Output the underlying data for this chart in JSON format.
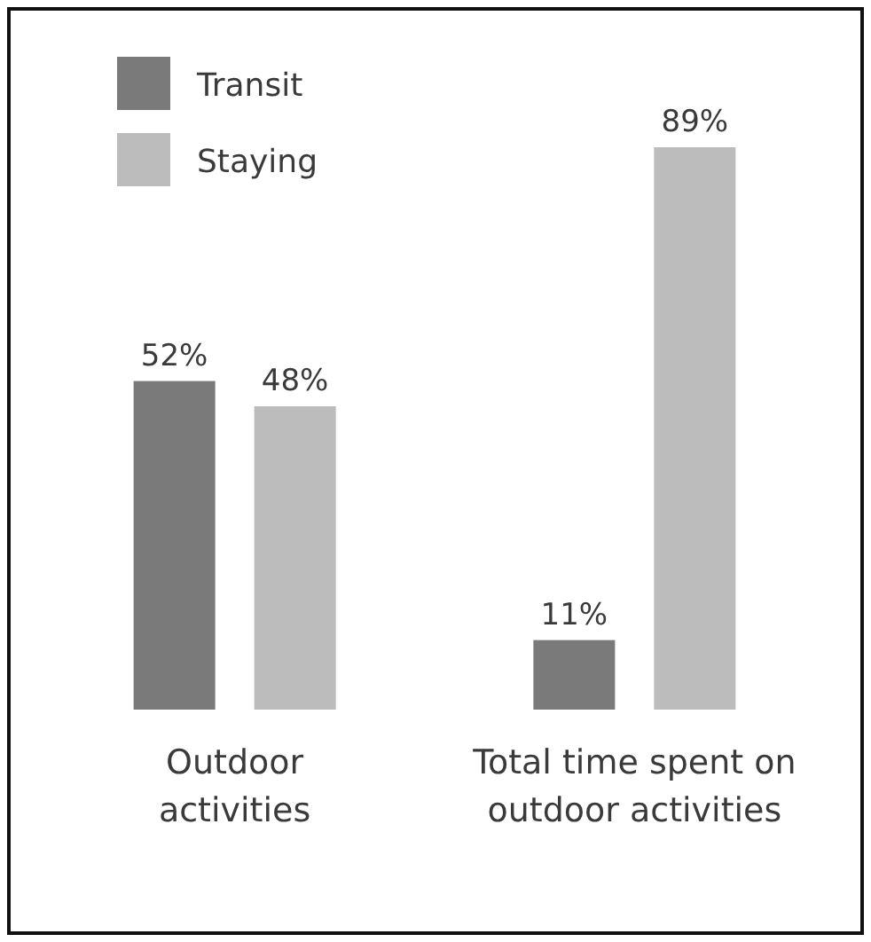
{
  "chart_data": {
    "type": "bar",
    "categories": [
      "Outdoor activities",
      "Total time spent on outdoor activities"
    ],
    "series": [
      {
        "name": "Transit",
        "color": "#7a7a7a",
        "values": [
          52,
          11
        ],
        "value_labels": [
          "52%",
          "11%"
        ]
      },
      {
        "name": "Staying",
        "color": "#bcbcbc",
        "values": [
          48,
          89
        ],
        "value_labels": [
          "48%",
          "89%"
        ]
      }
    ],
    "legend": "top left"
  }
}
